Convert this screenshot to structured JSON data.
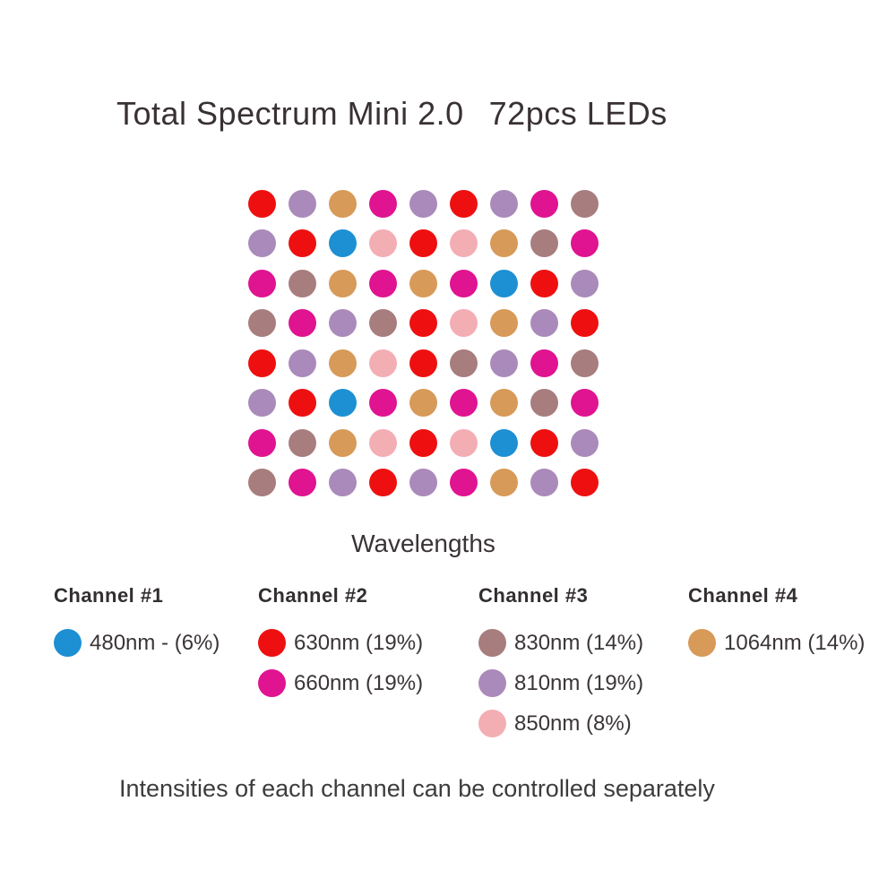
{
  "title": {
    "product": "Total Spectrum Mini 2.0",
    "led_count": "72pcs LEDs"
  },
  "grid": {
    "caption": "Wavelengths",
    "rows": 8,
    "cols": 9,
    "cells": [
      [
        "630",
        "810",
        "1064",
        "660",
        "810",
        "630",
        "810",
        "660",
        "830"
      ],
      [
        "810",
        "630",
        "480",
        "850",
        "630",
        "850",
        "1064",
        "830",
        "660"
      ],
      [
        "660",
        "830",
        "1064",
        "660",
        "1064",
        "660",
        "480",
        "630",
        "810"
      ],
      [
        "830",
        "660",
        "810",
        "830",
        "630",
        "850",
        "1064",
        "810",
        "630"
      ],
      [
        "630",
        "810",
        "1064",
        "850",
        "630",
        "830",
        "810",
        "660",
        "830"
      ],
      [
        "810",
        "630",
        "480",
        "660",
        "1064",
        "660",
        "1064",
        "830",
        "660"
      ],
      [
        "660",
        "830",
        "1064",
        "850",
        "630",
        "850",
        "480",
        "630",
        "810"
      ],
      [
        "830",
        "660",
        "810",
        "630",
        "810",
        "660",
        "1064",
        "810",
        "630"
      ]
    ]
  },
  "colors": {
    "480": "#1d90d3",
    "630": "#ee1010",
    "660": "#e01390",
    "810": "#aa8aba",
    "830": "#a87d7d",
    "850": "#f3aeb3",
    "1064": "#d79a58"
  },
  "channels": [
    {
      "name": "Channel #1",
      "items": [
        {
          "wavelength": "480",
          "label": "480nm - (6%)"
        }
      ]
    },
    {
      "name": "Channel #2",
      "items": [
        {
          "wavelength": "630",
          "label": "630nm (19%)"
        },
        {
          "wavelength": "660",
          "label": "660nm (19%)"
        }
      ]
    },
    {
      "name": "Channel #3",
      "items": [
        {
          "wavelength": "830",
          "label": "830nm (14%)"
        },
        {
          "wavelength": "810",
          "label": "810nm (19%)"
        },
        {
          "wavelength": "850",
          "label": "850nm (8%)"
        }
      ]
    },
    {
      "name": "Channel #4",
      "items": [
        {
          "wavelength": "1064",
          "label": "1064nm (14%)"
        }
      ]
    }
  ],
  "footer": "Intensities of each channel can be controlled separately"
}
